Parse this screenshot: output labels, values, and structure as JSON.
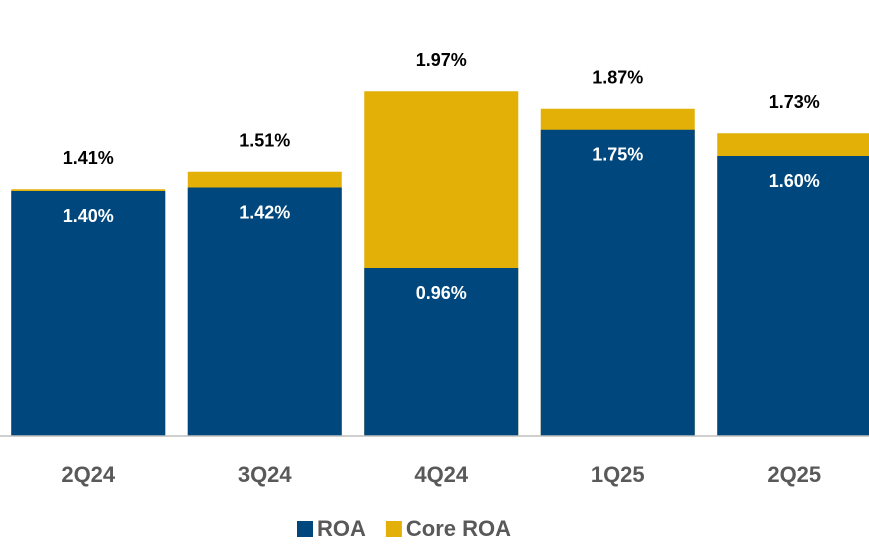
{
  "chart_data": {
    "type": "bar",
    "categories": [
      "2Q24",
      "3Q24",
      "4Q24",
      "1Q25",
      "2Q25"
    ],
    "series": [
      {
        "name": "ROA",
        "color": "#00477d",
        "values": [
          1.4,
          1.42,
          0.96,
          1.75,
          1.6
        ],
        "value_labels": [
          "1.40%",
          "1.42%",
          "0.96%",
          "1.75%",
          "1.60%"
        ]
      },
      {
        "name": "Core ROA",
        "color": "#e2b007",
        "values": [
          1.41,
          1.51,
          1.97,
          1.87,
          1.73
        ],
        "value_labels": [
          "1.41%",
          "1.51%",
          "1.97%",
          "1.87%",
          "1.73%"
        ]
      }
    ],
    "ylim": [
      0,
      2.4
    ],
    "legend": "bottom"
  }
}
